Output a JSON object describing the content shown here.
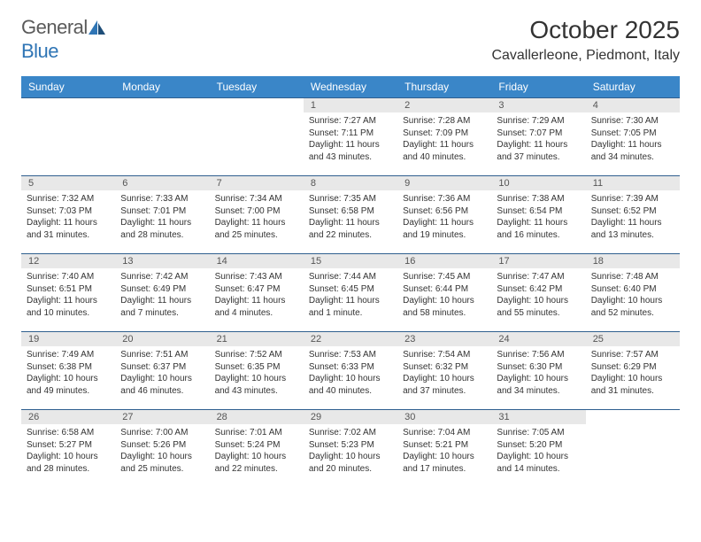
{
  "logo": {
    "text1": "General",
    "text2": "Blue"
  },
  "title": "October 2025",
  "location": "Cavallerleone, Piedmont, Italy",
  "colors": {
    "header_bg": "#3a86c8",
    "header_text": "#ffffff",
    "daynum_bg": "#e8e8e8",
    "border": "#2f5f8f",
    "logo_gray": "#5a5a5a",
    "logo_blue": "#2f75b5"
  },
  "weekdays": [
    "Sunday",
    "Monday",
    "Tuesday",
    "Wednesday",
    "Thursday",
    "Friday",
    "Saturday"
  ],
  "weeks": [
    [
      null,
      null,
      null,
      {
        "n": "1",
        "sr": "7:27 AM",
        "ss": "7:11 PM",
        "dl": "11 hours and 43 minutes."
      },
      {
        "n": "2",
        "sr": "7:28 AM",
        "ss": "7:09 PM",
        "dl": "11 hours and 40 minutes."
      },
      {
        "n": "3",
        "sr": "7:29 AM",
        "ss": "7:07 PM",
        "dl": "11 hours and 37 minutes."
      },
      {
        "n": "4",
        "sr": "7:30 AM",
        "ss": "7:05 PM",
        "dl": "11 hours and 34 minutes."
      }
    ],
    [
      {
        "n": "5",
        "sr": "7:32 AM",
        "ss": "7:03 PM",
        "dl": "11 hours and 31 minutes."
      },
      {
        "n": "6",
        "sr": "7:33 AM",
        "ss": "7:01 PM",
        "dl": "11 hours and 28 minutes."
      },
      {
        "n": "7",
        "sr": "7:34 AM",
        "ss": "7:00 PM",
        "dl": "11 hours and 25 minutes."
      },
      {
        "n": "8",
        "sr": "7:35 AM",
        "ss": "6:58 PM",
        "dl": "11 hours and 22 minutes."
      },
      {
        "n": "9",
        "sr": "7:36 AM",
        "ss": "6:56 PM",
        "dl": "11 hours and 19 minutes."
      },
      {
        "n": "10",
        "sr": "7:38 AM",
        "ss": "6:54 PM",
        "dl": "11 hours and 16 minutes."
      },
      {
        "n": "11",
        "sr": "7:39 AM",
        "ss": "6:52 PM",
        "dl": "11 hours and 13 minutes."
      }
    ],
    [
      {
        "n": "12",
        "sr": "7:40 AM",
        "ss": "6:51 PM",
        "dl": "11 hours and 10 minutes."
      },
      {
        "n": "13",
        "sr": "7:42 AM",
        "ss": "6:49 PM",
        "dl": "11 hours and 7 minutes."
      },
      {
        "n": "14",
        "sr": "7:43 AM",
        "ss": "6:47 PM",
        "dl": "11 hours and 4 minutes."
      },
      {
        "n": "15",
        "sr": "7:44 AM",
        "ss": "6:45 PM",
        "dl": "11 hours and 1 minute."
      },
      {
        "n": "16",
        "sr": "7:45 AM",
        "ss": "6:44 PM",
        "dl": "10 hours and 58 minutes."
      },
      {
        "n": "17",
        "sr": "7:47 AM",
        "ss": "6:42 PM",
        "dl": "10 hours and 55 minutes."
      },
      {
        "n": "18",
        "sr": "7:48 AM",
        "ss": "6:40 PM",
        "dl": "10 hours and 52 minutes."
      }
    ],
    [
      {
        "n": "19",
        "sr": "7:49 AM",
        "ss": "6:38 PM",
        "dl": "10 hours and 49 minutes."
      },
      {
        "n": "20",
        "sr": "7:51 AM",
        "ss": "6:37 PM",
        "dl": "10 hours and 46 minutes."
      },
      {
        "n": "21",
        "sr": "7:52 AM",
        "ss": "6:35 PM",
        "dl": "10 hours and 43 minutes."
      },
      {
        "n": "22",
        "sr": "7:53 AM",
        "ss": "6:33 PM",
        "dl": "10 hours and 40 minutes."
      },
      {
        "n": "23",
        "sr": "7:54 AM",
        "ss": "6:32 PM",
        "dl": "10 hours and 37 minutes."
      },
      {
        "n": "24",
        "sr": "7:56 AM",
        "ss": "6:30 PM",
        "dl": "10 hours and 34 minutes."
      },
      {
        "n": "25",
        "sr": "7:57 AM",
        "ss": "6:29 PM",
        "dl": "10 hours and 31 minutes."
      }
    ],
    [
      {
        "n": "26",
        "sr": "6:58 AM",
        "ss": "5:27 PM",
        "dl": "10 hours and 28 minutes."
      },
      {
        "n": "27",
        "sr": "7:00 AM",
        "ss": "5:26 PM",
        "dl": "10 hours and 25 minutes."
      },
      {
        "n": "28",
        "sr": "7:01 AM",
        "ss": "5:24 PM",
        "dl": "10 hours and 22 minutes."
      },
      {
        "n": "29",
        "sr": "7:02 AM",
        "ss": "5:23 PM",
        "dl": "10 hours and 20 minutes."
      },
      {
        "n": "30",
        "sr": "7:04 AM",
        "ss": "5:21 PM",
        "dl": "10 hours and 17 minutes."
      },
      {
        "n": "31",
        "sr": "7:05 AM",
        "ss": "5:20 PM",
        "dl": "10 hours and 14 minutes."
      },
      null
    ]
  ],
  "labels": {
    "sunrise": "Sunrise:",
    "sunset": "Sunset:",
    "daylight": "Daylight:"
  }
}
